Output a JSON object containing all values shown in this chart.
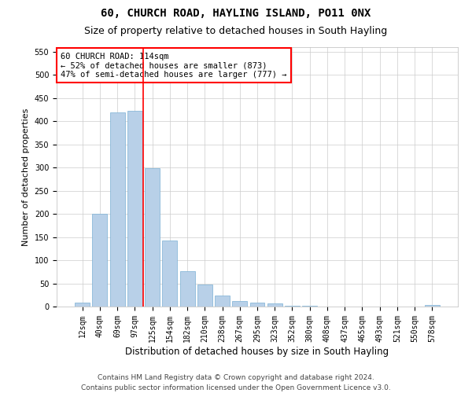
{
  "title": "60, CHURCH ROAD, HAYLING ISLAND, PO11 0NX",
  "subtitle": "Size of property relative to detached houses in South Hayling",
  "xlabel": "Distribution of detached houses by size in South Hayling",
  "ylabel": "Number of detached properties",
  "categories": [
    "12sqm",
    "40sqm",
    "69sqm",
    "97sqm",
    "125sqm",
    "154sqm",
    "182sqm",
    "210sqm",
    "238sqm",
    "267sqm",
    "295sqm",
    "323sqm",
    "352sqm",
    "380sqm",
    "408sqm",
    "437sqm",
    "465sqm",
    "493sqm",
    "521sqm",
    "550sqm",
    "578sqm"
  ],
  "values": [
    8,
    200,
    420,
    422,
    298,
    143,
    77,
    48,
    23,
    12,
    8,
    6,
    2,
    1,
    0,
    0,
    0,
    0,
    0,
    0,
    3
  ],
  "bar_color": "#b8d0e8",
  "bar_edge_color": "#7aafd4",
  "vline_x_index": 3.5,
  "vline_color": "red",
  "annotation_title": "60 CHURCH ROAD: 114sqm",
  "annotation_line1": "← 52% of detached houses are smaller (873)",
  "annotation_line2": "47% of semi-detached houses are larger (777) →",
  "annotation_box_color": "white",
  "annotation_box_edge": "red",
  "ylim": [
    0,
    560
  ],
  "yticks": [
    0,
    50,
    100,
    150,
    200,
    250,
    300,
    350,
    400,
    450,
    500,
    550
  ],
  "footer1": "Contains HM Land Registry data © Crown copyright and database right 2024.",
  "footer2": "Contains public sector information licensed under the Open Government Licence v3.0.",
  "title_fontsize": 10,
  "subtitle_fontsize": 9,
  "ylabel_fontsize": 8,
  "xlabel_fontsize": 8.5,
  "tick_fontsize": 7,
  "footer_fontsize": 6.5,
  "annotation_fontsize": 7.5
}
